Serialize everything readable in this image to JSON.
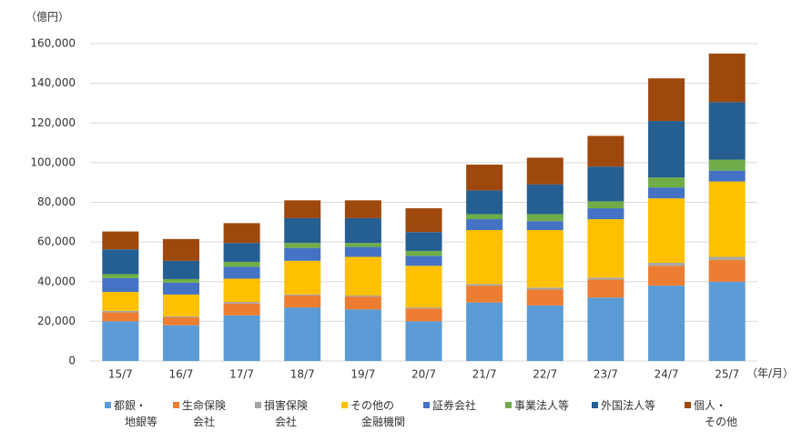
{
  "chart_data": {
    "type": "stacked_bar",
    "y_unit": "（億円）",
    "x_unit": "（年/月）",
    "categories": [
      "15/7",
      "16/7",
      "17/7",
      "18/7",
      "19/7",
      "20/7",
      "21/7",
      "22/7",
      "23/7",
      "24/7",
      "25/7"
    ],
    "series": [
      {
        "name": "都銀・\n地銀等",
        "color": "#5b9bd5",
        "values": [
          20000,
          18000,
          23000,
          27000,
          26000,
          20000,
          29500,
          28000,
          32000,
          38000,
          40000
        ]
      },
      {
        "name": "生命保険\n会社",
        "color": "#ed7d31",
        "values": [
          4500,
          4000,
          6000,
          6000,
          6500,
          6500,
          8500,
          8000,
          9000,
          10000,
          11000
        ]
      },
      {
        "name": "損害保険\n会社",
        "color": "#a5a5a5",
        "values": [
          800,
          500,
          800,
          600,
          500,
          500,
          800,
          1000,
          1000,
          1500,
          1500
        ]
      },
      {
        "name": "その他の\n金融機関",
        "color": "#ffc000",
        "values": [
          9500,
          11000,
          11700,
          16900,
          19500,
          21000,
          27200,
          29000,
          29500,
          32500,
          38000
        ]
      },
      {
        "name": "証券会社",
        "color": "#4472c4",
        "values": [
          7000,
          6000,
          6000,
          6500,
          5000,
          5000,
          5500,
          4500,
          5500,
          5500,
          5500
        ]
      },
      {
        "name": "事業法人等",
        "color": "#70ad47",
        "values": [
          2000,
          1800,
          2500,
          2500,
          2000,
          2500,
          2500,
          3500,
          3500,
          5000,
          5500
        ]
      },
      {
        "name": "外国法人等",
        "color": "#255e91",
        "values": [
          12500,
          9200,
          9500,
          12500,
          12500,
          9500,
          12000,
          15000,
          17500,
          28500,
          29000
        ]
      },
      {
        "name": "個人・\nその他",
        "color": "#9e480e",
        "values": [
          9000,
          11000,
          10000,
          9000,
          9000,
          12000,
          13000,
          13500,
          15500,
          21500,
          24500
        ]
      }
    ],
    "ylim": [
      0,
      160000
    ],
    "yticks": [
      0,
      {
        "value": 20000,
        "label": "20,000"
      },
      {
        "value": 40000,
        "label": "40,000"
      },
      {
        "value": 60000,
        "label": "60,000"
      },
      {
        "value": 80000,
        "label": "80,000"
      },
      {
        "value": 100000,
        "label": "100,000"
      },
      {
        "value": 120000,
        "label": "120,000"
      },
      {
        "value": 140000,
        "label": "140,000"
      },
      {
        "value": 160000,
        "label": "160,000"
      }
    ],
    "grid": true
  }
}
